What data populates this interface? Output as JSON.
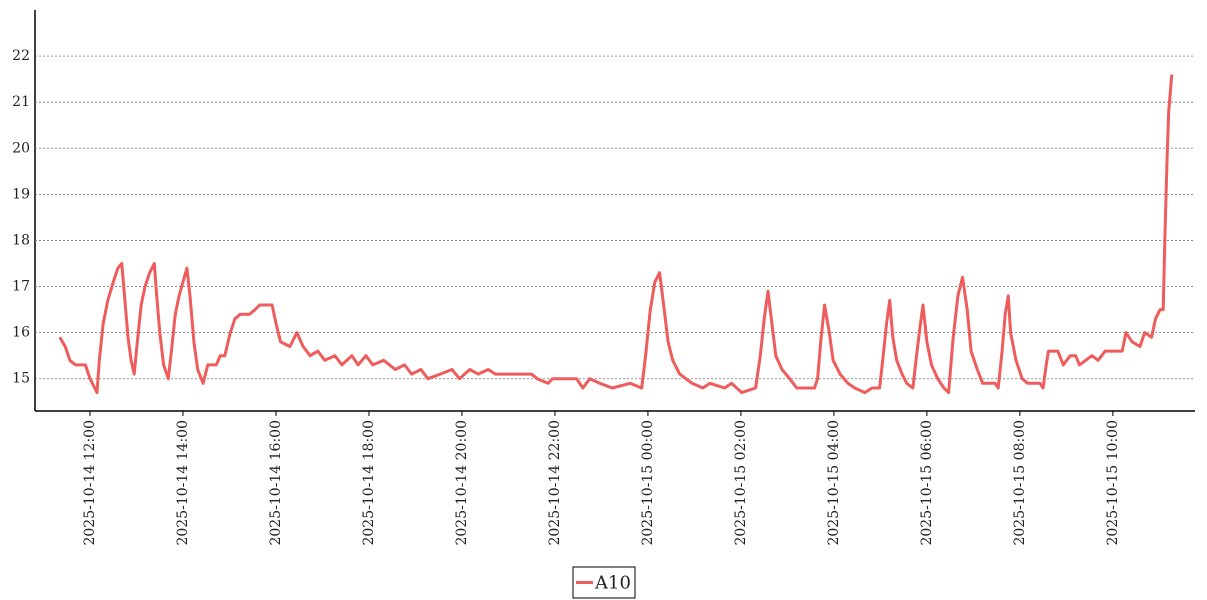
{
  "chart_data": {
    "type": "line",
    "x": [
      "2025-10-14 11:21",
      "2025-10-14 11:28",
      "2025-10-14 11:34",
      "2025-10-14 11:41",
      "2025-10-14 11:54",
      "2025-10-14 12:00",
      "2025-10-14 12:06",
      "2025-10-14 12:09",
      "2025-10-14 12:12",
      "2025-10-14 12:17",
      "2025-10-14 12:23",
      "2025-10-14 12:30",
      "2025-10-14 12:36",
      "2025-10-14 12:41",
      "2025-10-14 12:45",
      "2025-10-14 12:49",
      "2025-10-14 12:53",
      "2025-10-14 12:57",
      "2025-10-14 13:01",
      "2025-10-14 13:06",
      "2025-10-14 13:11",
      "2025-10-14 13:17",
      "2025-10-14 13:23",
      "2025-10-14 13:26",
      "2025-10-14 13:30",
      "2025-10-14 13:35",
      "2025-10-14 13:41",
      "2025-10-14 13:45",
      "2025-10-14 13:50",
      "2025-10-14 13:55",
      "2025-10-14 14:00",
      "2025-10-14 14:05",
      "2025-10-14 14:09",
      "2025-10-14 14:14",
      "2025-10-14 14:19",
      "2025-10-14 14:26",
      "2025-10-14 14:32",
      "2025-10-14 14:43",
      "2025-10-14 14:48",
      "2025-10-14 14:54",
      "2025-10-14 15:01",
      "2025-10-14 15:07",
      "2025-10-14 15:14",
      "2025-10-14 15:26",
      "2025-10-14 15:33",
      "2025-10-14 15:39",
      "2025-10-14 15:55",
      "2025-10-14 16:00",
      "2025-10-14 16:06",
      "2025-10-14 16:18",
      "2025-10-14 16:27",
      "2025-10-14 16:35",
      "2025-10-14 16:44",
      "2025-10-14 16:54",
      "2025-10-14 17:03",
      "2025-10-14 17:16",
      "2025-10-14 17:25",
      "2025-10-14 17:38",
      "2025-10-14 17:46",
      "2025-10-14 17:56",
      "2025-10-14 18:05",
      "2025-10-14 18:19",
      "2025-10-14 18:34",
      "2025-10-14 18:46",
      "2025-10-14 18:55",
      "2025-10-14 19:07",
      "2025-10-14 19:16",
      "2025-10-14 19:32",
      "2025-10-14 19:47",
      "2025-10-14 19:57",
      "2025-10-14 20:10",
      "2025-10-14 20:21",
      "2025-10-14 20:34",
      "2025-10-14 20:43",
      "2025-10-14 21:30",
      "2025-10-14 21:37",
      "2025-10-14 21:51",
      "2025-10-14 21:57",
      "2025-10-14 22:28",
      "2025-10-14 22:36",
      "2025-10-14 22:45",
      "2025-10-14 22:58",
      "2025-10-14 23:14",
      "2025-10-14 23:37",
      "2025-10-14 23:52",
      "2025-10-14 23:57",
      "2025-10-15 00:03",
      "2025-10-15 00:09",
      "2025-10-15 00:15",
      "2025-10-15 00:21",
      "2025-10-15 00:26",
      "2025-10-15 00:32",
      "2025-10-15 00:41",
      "2025-10-15 00:57",
      "2025-10-15 01:11",
      "2025-10-15 01:20",
      "2025-10-15 01:39",
      "2025-10-15 01:48",
      "2025-10-15 02:01",
      "2025-10-15 02:19",
      "2025-10-15 02:25",
      "2025-10-15 02:30",
      "2025-10-15 02:35",
      "2025-10-15 02:40",
      "2025-10-15 02:45",
      "2025-10-15 02:53",
      "2025-10-15 03:03",
      "2025-10-15 03:12",
      "2025-10-15 03:35",
      "2025-10-15 03:39",
      "2025-10-15 03:43",
      "2025-10-15 03:48",
      "2025-10-15 03:54",
      "2025-10-15 03:59",
      "2025-10-15 04:08",
      "2025-10-15 04:18",
      "2025-10-15 04:27",
      "2025-10-15 04:40",
      "2025-10-15 04:49",
      "2025-10-15 04:59",
      "2025-10-15 05:03",
      "2025-10-15 05:08",
      "2025-10-15 05:12",
      "2025-10-15 05:16",
      "2025-10-15 05:21",
      "2025-10-15 05:28",
      "2025-10-15 05:34",
      "2025-10-15 05:42",
      "2025-10-15 05:46",
      "2025-10-15 05:51",
      "2025-10-15 05:55",
      "2025-10-15 06:00",
      "2025-10-15 06:06",
      "2025-10-15 06:14",
      "2025-10-15 06:22",
      "2025-10-15 06:28",
      "2025-10-15 06:34",
      "2025-10-15 06:40",
      "2025-10-15 06:46",
      "2025-10-15 06:52",
      "2025-10-15 06:57",
      "2025-10-15 07:05",
      "2025-10-15 07:12",
      "2025-10-15 07:28",
      "2025-10-15 07:32",
      "2025-10-15 07:37",
      "2025-10-15 07:41",
      "2025-10-15 07:45",
      "2025-10-15 07:48",
      "2025-10-15 07:55",
      "2025-10-15 08:03",
      "2025-10-15 08:10",
      "2025-10-15 08:26",
      "2025-10-15 08:30",
      "2025-10-15 08:34",
      "2025-10-15 08:37",
      "2025-10-15 08:49",
      "2025-10-15 08:56",
      "2025-10-15 09:05",
      "2025-10-15 09:12",
      "2025-10-15 09:17",
      "2025-10-15 09:25",
      "2025-10-15 09:33",
      "2025-10-15 09:41",
      "2025-10-15 09:50",
      "2025-10-15 10:12",
      "2025-10-15 10:17",
      "2025-10-15 10:25",
      "2025-10-15 10:35",
      "2025-10-15 10:41",
      "2025-10-15 10:50",
      "2025-10-15 10:55",
      "2025-10-15 11:01",
      "2025-10-15 11:05",
      "2025-10-15 11:07",
      "2025-10-15 11:10",
      "2025-10-15 11:12",
      "2025-10-15 11:16"
    ],
    "series": [
      {
        "name": "A10",
        "color": "#ee5c5c",
        "values": [
          15.9,
          15.7,
          15.4,
          15.3,
          15.3,
          15.0,
          14.8,
          14.7,
          15.4,
          16.2,
          16.7,
          17.1,
          17.4,
          17.5,
          16.7,
          15.9,
          15.4,
          15.1,
          15.8,
          16.6,
          17.0,
          17.3,
          17.5,
          16.8,
          16.0,
          15.3,
          15.0,
          15.6,
          16.4,
          16.8,
          17.1,
          17.4,
          16.8,
          15.8,
          15.2,
          14.9,
          15.3,
          15.3,
          15.5,
          15.5,
          16.0,
          16.3,
          16.4,
          16.4,
          16.5,
          16.6,
          16.6,
          16.2,
          15.8,
          15.7,
          16.0,
          15.7,
          15.5,
          15.6,
          15.4,
          15.5,
          15.3,
          15.5,
          15.3,
          15.5,
          15.3,
          15.4,
          15.2,
          15.3,
          15.1,
          15.2,
          15.0,
          15.1,
          15.2,
          15.0,
          15.2,
          15.1,
          15.2,
          15.1,
          15.1,
          15.0,
          14.9,
          15.0,
          15.0,
          14.8,
          15.0,
          14.9,
          14.8,
          14.9,
          14.8,
          15.5,
          16.5,
          17.1,
          17.3,
          16.5,
          15.8,
          15.4,
          15.1,
          14.9,
          14.8,
          14.9,
          14.8,
          14.9,
          14.7,
          14.8,
          15.5,
          16.3,
          16.9,
          16.2,
          15.5,
          15.2,
          15.0,
          14.8,
          14.8,
          15.0,
          15.8,
          16.6,
          16.0,
          15.4,
          15.1,
          14.9,
          14.8,
          14.7,
          14.8,
          14.8,
          15.4,
          16.2,
          16.7,
          15.9,
          15.4,
          15.1,
          14.9,
          14.8,
          15.4,
          16.1,
          16.6,
          15.8,
          15.3,
          15.0,
          14.8,
          14.7,
          15.9,
          16.8,
          17.2,
          16.5,
          15.6,
          15.2,
          14.9,
          14.9,
          14.8,
          15.6,
          16.4,
          16.8,
          16.0,
          15.4,
          15.0,
          14.9,
          14.9,
          14.8,
          15.3,
          15.6,
          15.6,
          15.3,
          15.5,
          15.5,
          15.3,
          15.4,
          15.5,
          15.4,
          15.6,
          15.6,
          16.0,
          15.8,
          15.7,
          16.0,
          15.9,
          16.3,
          16.5,
          16.5,
          18.0,
          19.8,
          20.8,
          21.6
        ]
      }
    ],
    "xlim": [
      "2025-10-14 10:49",
      "2025-10-15 11:46"
    ],
    "xticks": [
      "2025-10-14 12:00",
      "2025-10-14 14:00",
      "2025-10-14 16:00",
      "2025-10-14 18:00",
      "2025-10-14 20:00",
      "2025-10-14 22:00",
      "2025-10-15 00:00",
      "2025-10-15 02:00",
      "2025-10-15 04:00",
      "2025-10-15 06:00",
      "2025-10-15 08:00",
      "2025-10-15 10:00"
    ],
    "ylim": [
      14.3,
      23
    ],
    "yticks": [
      15,
      16,
      17,
      18,
      19,
      20,
      21,
      22
    ],
    "grid": true,
    "legend": "bottom"
  }
}
